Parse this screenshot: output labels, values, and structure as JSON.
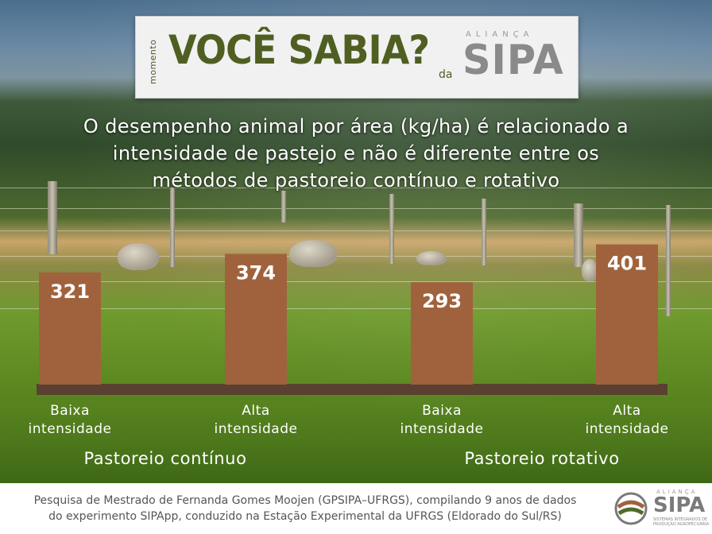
{
  "header": {
    "momento": "momento",
    "title": "VOCÊ SABIA?",
    "da": "da",
    "brand_top": "ALIANÇA",
    "brand": "SIPA"
  },
  "subtitle_lines": [
    "O desempenho animal por área (kg/ha) é relacionado a",
    "intensidade de pastejo e não é diferente entre os",
    "métodos de pastoreio contínuo e rotativo"
  ],
  "chart_data": {
    "type": "bar",
    "title": "O desempenho animal por área (kg/ha) é relacionado a intensidade de pastejo e não é diferente entre os métodos de pastoreio contínuo e rotativo",
    "categories": [
      {
        "label_line1": "Baixa",
        "label_line2": "intensidade",
        "group": "Pastoreio contínuo"
      },
      {
        "label_line1": "Alta",
        "label_line2": "intensidade",
        "group": "Pastoreio contínuo"
      },
      {
        "label_line1": "Baixa",
        "label_line2": "intensidade",
        "group": "Pastoreio rotativo"
      },
      {
        "label_line1": "Alta",
        "label_line2": "intensidade",
        "group": "Pastoreio rotativo"
      }
    ],
    "values": [
      321,
      374,
      293,
      401
    ],
    "groups": [
      "Pastoreio contínuo",
      "Pastoreio rotativo"
    ],
    "ylabel": "",
    "xlabel": "",
    "grid": false,
    "bar_color": "#a0623c",
    "baseline_color": "#5a4030"
  },
  "footer": {
    "line1": "Pesquisa de Mestrado de Fernanda Gomes Moojen (GPSIPA–UFRGS), compilando 9 anos de dados",
    "line2": "do experimento SIPApp, conduzido na Estação Experimental da UFRGS (Eldorado do Sul/RS)",
    "logo_top": "ALIANÇA",
    "logo_brand": "SIPA",
    "logo_tagline": "SISTEMAS INTEGRADOS DE PRODUÇÃO AGROPECUÁRIA"
  }
}
